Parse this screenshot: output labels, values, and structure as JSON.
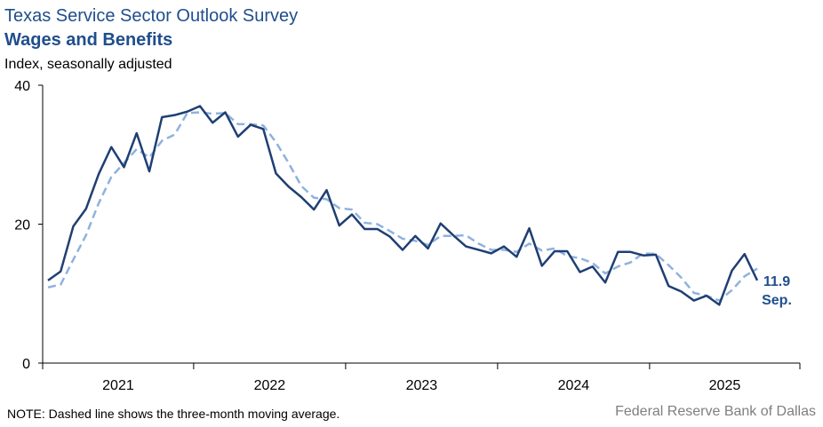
{
  "header": {
    "title": "Texas Service Sector Outlook Survey",
    "subtitle": "Wages and Benefits",
    "units": "Index, seasonally adjusted"
  },
  "footer": {
    "note": "NOTE: Dashed line shows the three-month moving average.",
    "source": "Federal Reserve Bank of Dallas"
  },
  "colors": {
    "index_line": "#1f3f73",
    "moving_average_line": "#8fb2de",
    "axis": "#000000",
    "title": "#1f4e8c"
  },
  "chart_data": {
    "type": "line",
    "title": "Wages and Benefits",
    "ylabel": "Index, seasonally adjusted",
    "ylim": [
      0,
      40
    ],
    "y_ticks": [
      "0",
      "20",
      "40"
    ],
    "x_tick_labels": [
      "2021",
      "2022",
      "2023",
      "2024",
      "2025"
    ],
    "x_start": "2021-01",
    "x_end": "2025-09",
    "grid": false,
    "legend": "none",
    "end_annotation": {
      "value": "11.9",
      "period": "Sep."
    },
    "series": [
      {
        "role": "index",
        "line_style": "solid",
        "values": [
          11.9,
          13.2,
          19.7,
          22.2,
          27.2,
          31.1,
          28.2,
          33.1,
          27.6,
          35.4,
          35.7,
          36.2,
          37.0,
          34.6,
          36.1,
          32.6,
          34.3,
          33.7,
          27.3,
          25.4,
          23.9,
          22.1,
          24.9,
          19.8,
          21.4,
          19.3,
          19.3,
          18.2,
          16.3,
          18.3,
          16.5,
          20.1,
          18.4,
          16.8,
          16.3,
          15.8,
          16.8,
          15.3,
          19.4,
          14.0,
          16.1,
          16.1,
          13.1,
          13.9,
          11.6,
          16.0,
          16.0,
          15.5,
          15.6,
          11.1,
          10.3,
          9.0,
          9.7,
          8.4,
          13.3,
          15.7,
          11.9
        ]
      },
      {
        "role": "three_month_moving_average",
        "line_style": "dashed",
        "values": [
          10.9,
          11.3,
          14.9,
          18.4,
          23.0,
          26.8,
          28.8,
          30.8,
          29.6,
          32.0,
          32.9,
          36.0,
          36.1,
          35.9,
          36.0,
          34.4,
          34.4,
          34.2,
          31.8,
          28.8,
          25.5,
          23.8,
          23.6,
          22.3,
          22.1,
          20.2,
          20.0,
          19.0,
          17.9,
          17.6,
          17.0,
          18.3,
          18.3,
          18.4,
          17.2,
          16.3,
          16.3,
          16.0,
          17.2,
          16.2,
          16.5,
          15.4,
          15.1,
          14.4,
          12.9,
          13.9,
          14.5,
          15.8,
          15.7,
          14.1,
          12.3,
          10.1,
          9.7,
          9.0,
          10.5,
          12.5,
          13.6
        ]
      }
    ]
  }
}
